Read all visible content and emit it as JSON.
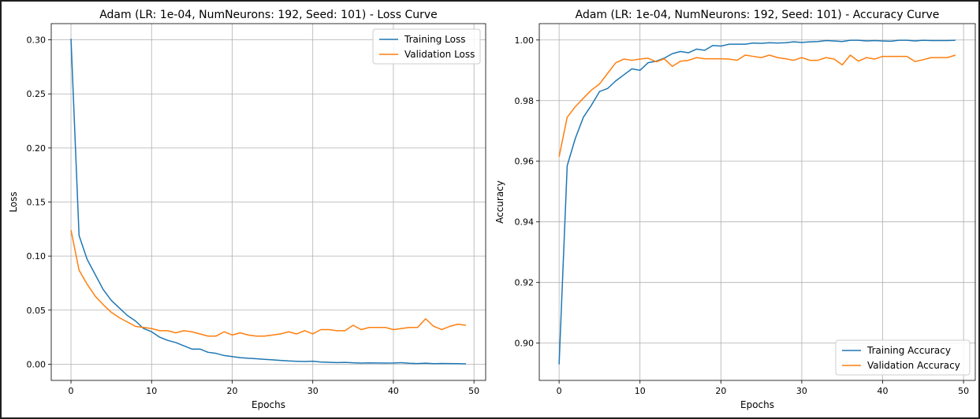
{
  "colors": {
    "training": "#1f77b4",
    "validation": "#ff7f0e",
    "grid": "#b0b0b0"
  },
  "chart_data": [
    {
      "type": "line",
      "title": "Adam (LR: 1e-04, NumNeurons: 192, Seed: 101) - Loss Curve",
      "xlabel": "Epochs",
      "ylabel": "Loss",
      "xlim": [
        -2.45,
        51.45
      ],
      "ylim": [
        -0.015,
        0.315
      ],
      "xticks": [
        0,
        10,
        20,
        30,
        40,
        50
      ],
      "yticks": [
        0.0,
        0.05,
        0.1,
        0.15,
        0.2,
        0.25,
        0.3
      ],
      "ytick_labels": [
        "0.00",
        "0.05",
        "0.10",
        "0.15",
        "0.20",
        "0.25",
        "0.30"
      ],
      "grid": true,
      "legend": "top-right",
      "x": [
        0,
        1,
        2,
        3,
        4,
        5,
        6,
        7,
        8,
        9,
        10,
        11,
        12,
        13,
        14,
        15,
        16,
        17,
        18,
        19,
        20,
        21,
        22,
        23,
        24,
        25,
        26,
        27,
        28,
        29,
        30,
        31,
        32,
        33,
        34,
        35,
        36,
        37,
        38,
        39,
        40,
        41,
        42,
        43,
        44,
        45,
        46,
        47,
        48,
        49
      ],
      "series": [
        {
          "name": "Training Loss",
          "color": "#1f77b4",
          "values": [
            0.301,
            0.119,
            0.097,
            0.083,
            0.069,
            0.059,
            0.052,
            0.045,
            0.04,
            0.033,
            0.03,
            0.025,
            0.022,
            0.02,
            0.017,
            0.014,
            0.014,
            0.011,
            0.01,
            0.008,
            0.007,
            0.006,
            0.0055,
            0.005,
            0.0045,
            0.004,
            0.0035,
            0.003,
            0.0027,
            0.0025,
            0.0028,
            0.002,
            0.0018,
            0.0015,
            0.0017,
            0.0013,
            0.001,
            0.0012,
            0.0011,
            0.001,
            0.0011,
            0.0014,
            0.0008,
            0.0006,
            0.0009,
            0.0005,
            0.0007,
            0.0006,
            0.0005,
            0.0003
          ]
        },
        {
          "name": "Validation Loss",
          "color": "#ff7f0e",
          "values": [
            0.124,
            0.087,
            0.074,
            0.063,
            0.055,
            0.048,
            0.043,
            0.039,
            0.035,
            0.034,
            0.033,
            0.031,
            0.031,
            0.029,
            0.031,
            0.03,
            0.028,
            0.026,
            0.026,
            0.03,
            0.027,
            0.029,
            0.027,
            0.026,
            0.026,
            0.027,
            0.028,
            0.03,
            0.028,
            0.031,
            0.028,
            0.032,
            0.032,
            0.031,
            0.031,
            0.036,
            0.032,
            0.034,
            0.034,
            0.034,
            0.032,
            0.033,
            0.034,
            0.034,
            0.042,
            0.035,
            0.032,
            0.035,
            0.037,
            0.036
          ]
        }
      ]
    },
    {
      "type": "line",
      "title": "Adam (LR: 1e-04, NumNeurons: 192, Seed: 101) - Accuracy Curve",
      "xlabel": "Epochs",
      "ylabel": "Accuracy",
      "xlim": [
        -2.45,
        51.45
      ],
      "ylim": [
        0.8877,
        1.0054
      ],
      "xticks": [
        0,
        10,
        20,
        30,
        40,
        50
      ],
      "yticks": [
        0.9,
        0.92,
        0.94,
        0.96,
        0.98,
        1.0
      ],
      "ytick_labels": [
        "0.90",
        "0.92",
        "0.94",
        "0.96",
        "0.98",
        "1.00"
      ],
      "grid": true,
      "legend": "bottom-right",
      "x": [
        0,
        1,
        2,
        3,
        4,
        5,
        6,
        7,
        8,
        9,
        10,
        11,
        12,
        13,
        14,
        15,
        16,
        17,
        18,
        19,
        20,
        21,
        22,
        23,
        24,
        25,
        26,
        27,
        28,
        29,
        30,
        31,
        32,
        33,
        34,
        35,
        36,
        37,
        38,
        39,
        40,
        41,
        42,
        43,
        44,
        45,
        46,
        47,
        48,
        49
      ],
      "series": [
        {
          "name": "Training Accuracy",
          "color": "#1f77b4",
          "values": [
            0.893,
            0.9585,
            0.9675,
            0.9745,
            0.9785,
            0.983,
            0.984,
            0.9865,
            0.9885,
            0.9905,
            0.99,
            0.9925,
            0.993,
            0.994,
            0.9955,
            0.9962,
            0.9958,
            0.997,
            0.9966,
            0.9982,
            0.998,
            0.9986,
            0.9986,
            0.9986,
            0.999,
            0.9989,
            0.9991,
            0.999,
            0.9991,
            0.9994,
            0.9992,
            0.9994,
            0.9995,
            0.9998,
            0.9997,
            0.9995,
            0.9999,
            0.9999,
            0.9997,
            0.9998,
            0.9997,
            0.9996,
            0.9999,
            0.9999,
            0.9997,
            0.9999,
            0.9998,
            0.9998,
            0.9998,
            0.9999
          ]
        },
        {
          "name": "Validation Accuracy",
          "color": "#ff7f0e",
          "values": [
            0.9615,
            0.9745,
            0.978,
            0.9808,
            0.9835,
            0.9855,
            0.989,
            0.9925,
            0.9937,
            0.9933,
            0.9937,
            0.994,
            0.9928,
            0.9938,
            0.9913,
            0.993,
            0.9933,
            0.9942,
            0.9938,
            0.9938,
            0.9938,
            0.9937,
            0.9933,
            0.995,
            0.9946,
            0.9942,
            0.995,
            0.9942,
            0.9938,
            0.9933,
            0.9942,
            0.9933,
            0.9933,
            0.9942,
            0.9937,
            0.9918,
            0.995,
            0.993,
            0.9942,
            0.9937,
            0.9946,
            0.9946,
            0.9946,
            0.9946,
            0.9929,
            0.9935,
            0.9942,
            0.9942,
            0.9942,
            0.995
          ]
        }
      ]
    }
  ]
}
